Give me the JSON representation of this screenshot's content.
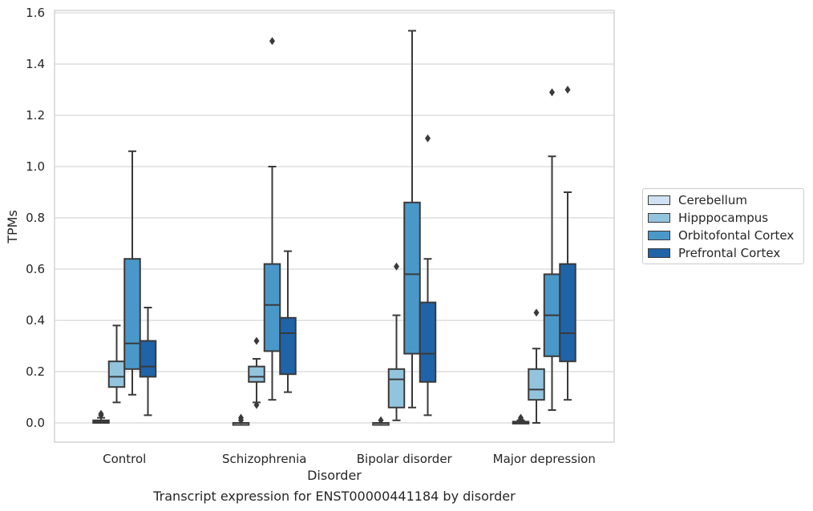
{
  "chart_data": {
    "type": "boxplot",
    "title": "Transcript expression for ENST00000441184 by disorder",
    "xlabel": "Disorder",
    "ylabel": "TPMs",
    "ylim": [
      -0.07,
      1.61
    ],
    "yticks": [
      0.0,
      0.2,
      0.4,
      0.6,
      0.8,
      1.0,
      1.2,
      1.4,
      1.6
    ],
    "ytick_labels": [
      "0.0",
      "0.2",
      "0.4",
      "0.6",
      "0.8",
      "1.0",
      "1.2",
      "1.4",
      "1.6"
    ],
    "categories": [
      "Control",
      "Schizophrenia",
      "Bipolar disorder",
      "Major depression"
    ],
    "grid": true,
    "legend_position": "right",
    "series": [
      {
        "name": "Cerebellum",
        "color": "#cfe1f2",
        "boxes": [
          {
            "whislo": 0.0,
            "q1": 0.0,
            "med": 0.005,
            "q3": 0.01,
            "whishi": 0.02,
            "fliers": [
              0.03,
              0.035
            ]
          },
          {
            "whislo": 0.0,
            "q1": 0.0,
            "med": 0.0,
            "q3": 0.0,
            "whishi": 0.0,
            "fliers": [
              0.01,
              0.02
            ]
          },
          {
            "whislo": 0.0,
            "q1": 0.0,
            "med": 0.0,
            "q3": 0.0,
            "whishi": 0.0,
            "fliers": [
              0.01
            ]
          },
          {
            "whislo": 0.0,
            "q1": 0.0,
            "med": 0.002,
            "q3": 0.005,
            "whishi": 0.01,
            "fliers": [
              0.015,
              0.02
            ]
          }
        ]
      },
      {
        "name": "Hipppocampus",
        "color": "#93c4de",
        "boxes": [
          {
            "whislo": 0.08,
            "q1": 0.14,
            "med": 0.18,
            "q3": 0.24,
            "whishi": 0.38,
            "fliers": []
          },
          {
            "whislo": 0.08,
            "q1": 0.16,
            "med": 0.18,
            "q3": 0.22,
            "whishi": 0.25,
            "fliers": [
              0.32,
              0.07
            ]
          },
          {
            "whislo": 0.01,
            "q1": 0.06,
            "med": 0.17,
            "q3": 0.21,
            "whishi": 0.42,
            "fliers": [
              0.61
            ]
          },
          {
            "whislo": 0.0,
            "q1": 0.09,
            "med": 0.13,
            "q3": 0.21,
            "whishi": 0.29,
            "fliers": [
              0.43
            ]
          }
        ]
      },
      {
        "name": "Orbitofontal Cortex",
        "color": "#4a98c9",
        "boxes": [
          {
            "whislo": 0.11,
            "q1": 0.21,
            "med": 0.31,
            "q3": 0.64,
            "whishi": 1.06,
            "fliers": []
          },
          {
            "whislo": 0.09,
            "q1": 0.28,
            "med": 0.46,
            "q3": 0.62,
            "whishi": 1.0,
            "fliers": [
              1.49
            ]
          },
          {
            "whislo": 0.06,
            "q1": 0.27,
            "med": 0.58,
            "q3": 0.86,
            "whishi": 1.53,
            "fliers": []
          },
          {
            "whislo": 0.05,
            "q1": 0.26,
            "med": 0.42,
            "q3": 0.58,
            "whishi": 1.04,
            "fliers": [
              1.29
            ]
          }
        ]
      },
      {
        "name": "Prefrontal Cortex",
        "color": "#1f63a8",
        "boxes": [
          {
            "whislo": 0.03,
            "q1": 0.18,
            "med": 0.22,
            "q3": 0.32,
            "whishi": 0.45,
            "fliers": []
          },
          {
            "whislo": 0.12,
            "q1": 0.19,
            "med": 0.35,
            "q3": 0.41,
            "whishi": 0.67,
            "fliers": []
          },
          {
            "whislo": 0.03,
            "q1": 0.16,
            "med": 0.27,
            "q3": 0.47,
            "whishi": 0.64,
            "fliers": [
              1.11
            ]
          },
          {
            "whislo": 0.09,
            "q1": 0.24,
            "med": 0.35,
            "q3": 0.62,
            "whishi": 0.9,
            "fliers": [
              1.3
            ]
          }
        ]
      }
    ]
  }
}
